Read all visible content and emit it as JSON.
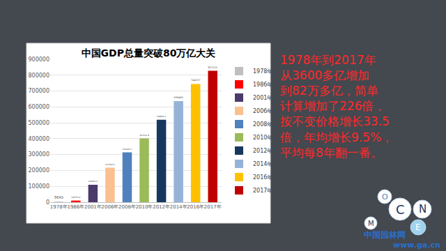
{
  "chart_data": {
    "type": "bar",
    "title": "中国GDP总量突破80万亿大关",
    "categories": [
      "1978年",
      "1986年",
      "2001年",
      "2006年",
      "2008年",
      "2010年",
      "2012年",
      "2014年",
      "2016年",
      "2017年"
    ],
    "values": [
      3645,
      10274.4,
      109655.2,
      217656.6,
      314045.4,
      401512.8,
      518942.1,
      636463,
      744127,
      827122
    ],
    "colors": [
      "#bfbfbf",
      "#ff0000",
      "#4b3a6b",
      "#fac090",
      "#4f81bd",
      "#9bbb59",
      "#17375e",
      "#95b3d7",
      "#ffc000",
      "#c00000"
    ],
    "ylim": [
      0,
      900000
    ],
    "yticks": [
      0,
      100000,
      200000,
      300000,
      400000,
      500000,
      600000,
      700000,
      800000,
      900000
    ],
    "grid": true,
    "data_labels": true,
    "legend": "right"
  },
  "side_text": {
    "lines": [
      "1978年到2017年",
      "从3600多亿增加",
      "到82万多亿，简单",
      "计算增加了226倍，",
      "按不变价格增长33.5",
      "倍，年均增长9.5%，",
      "平均每8年翻一番。"
    ]
  },
  "decoration": {
    "letters": [
      "O",
      "C",
      "N",
      "M",
      "E"
    ]
  },
  "watermark": {
    "name": "中国园林网",
    "url": "www.ga.cn"
  }
}
